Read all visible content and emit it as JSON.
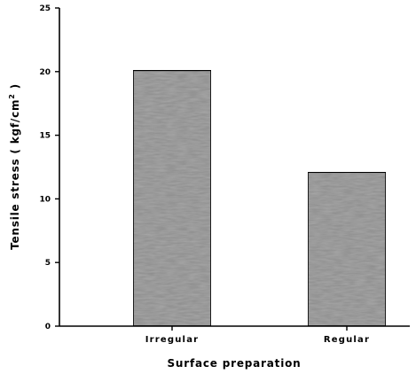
{
  "chart_data": {
    "type": "bar",
    "categories": [
      "Irregular",
      "Regular"
    ],
    "values": [
      20.1,
      12.1
    ],
    "xlabel": "Surface preparation",
    "ylabel_parts": [
      "Tensile stress ( kgf/cm",
      "2",
      " )"
    ],
    "ylim": [
      0,
      25
    ],
    "yticks": [
      "0",
      "5",
      "10",
      "15",
      "20",
      "25"
    ],
    "grid": false,
    "colors": {
      "bar_fill": "#a8a8a8",
      "bar_edge": "#000000",
      "axis": "#000000"
    }
  }
}
